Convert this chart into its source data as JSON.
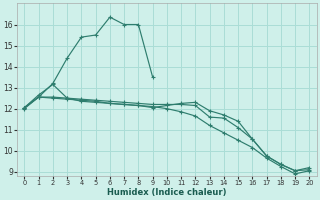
{
  "title": "",
  "xlabel": "Humidex (Indice chaleur)",
  "ylabel": "",
  "bg_color": "#cff0ea",
  "grid_color": "#aaddd6",
  "line_color": "#2e7d6e",
  "xlim": [
    -0.5,
    20.5
  ],
  "ylim": [
    8.8,
    17.0
  ],
  "yticks": [
    9,
    10,
    11,
    12,
    13,
    14,
    15,
    16
  ],
  "xticks": [
    0,
    1,
    2,
    3,
    4,
    5,
    6,
    7,
    8,
    9,
    10,
    11,
    12,
    13,
    14,
    15,
    16,
    17,
    18,
    19,
    20
  ],
  "series": [
    {
      "x": [
        0,
        1,
        2,
        3,
        4,
        5,
        6,
        7,
        8,
        9
      ],
      "y": [
        12.0,
        12.55,
        13.2,
        14.4,
        15.4,
        15.5,
        16.35,
        16.0,
        16.0,
        13.5
      ]
    },
    {
      "x": [
        0,
        1,
        2,
        3,
        4,
        5,
        6,
        7,
        8,
        9,
        10,
        11,
        12,
        13,
        14,
        15,
        16,
        17,
        18,
        19,
        20
      ],
      "y": [
        12.05,
        12.55,
        12.55,
        12.5,
        12.45,
        12.4,
        12.35,
        12.3,
        12.25,
        12.2,
        12.2,
        12.2,
        12.15,
        11.6,
        11.55,
        11.1,
        10.55,
        9.75,
        9.35,
        9.05,
        9.1
      ]
    },
    {
      "x": [
        0,
        1,
        2,
        3,
        4,
        5,
        6,
        7,
        8,
        9,
        10,
        11,
        12,
        13,
        14,
        15,
        16,
        17,
        18,
        19,
        20
      ],
      "y": [
        12.05,
        12.55,
        12.5,
        12.45,
        12.4,
        12.35,
        12.25,
        12.2,
        12.15,
        12.1,
        12.0,
        11.85,
        11.65,
        11.2,
        10.85,
        10.5,
        10.15,
        9.65,
        9.25,
        8.9,
        9.05
      ]
    },
    {
      "x": [
        0,
        1,
        2,
        3,
        4,
        5,
        6,
        7,
        8,
        9,
        10,
        11,
        12,
        13,
        14,
        15,
        16,
        17,
        18,
        19,
        20
      ],
      "y": [
        12.05,
        12.65,
        13.15,
        12.5,
        12.35,
        12.3,
        12.25,
        12.2,
        12.15,
        12.05,
        12.15,
        12.25,
        12.3,
        11.9,
        11.7,
        11.4,
        10.55,
        9.75,
        9.35,
        9.05,
        9.2
      ]
    }
  ]
}
